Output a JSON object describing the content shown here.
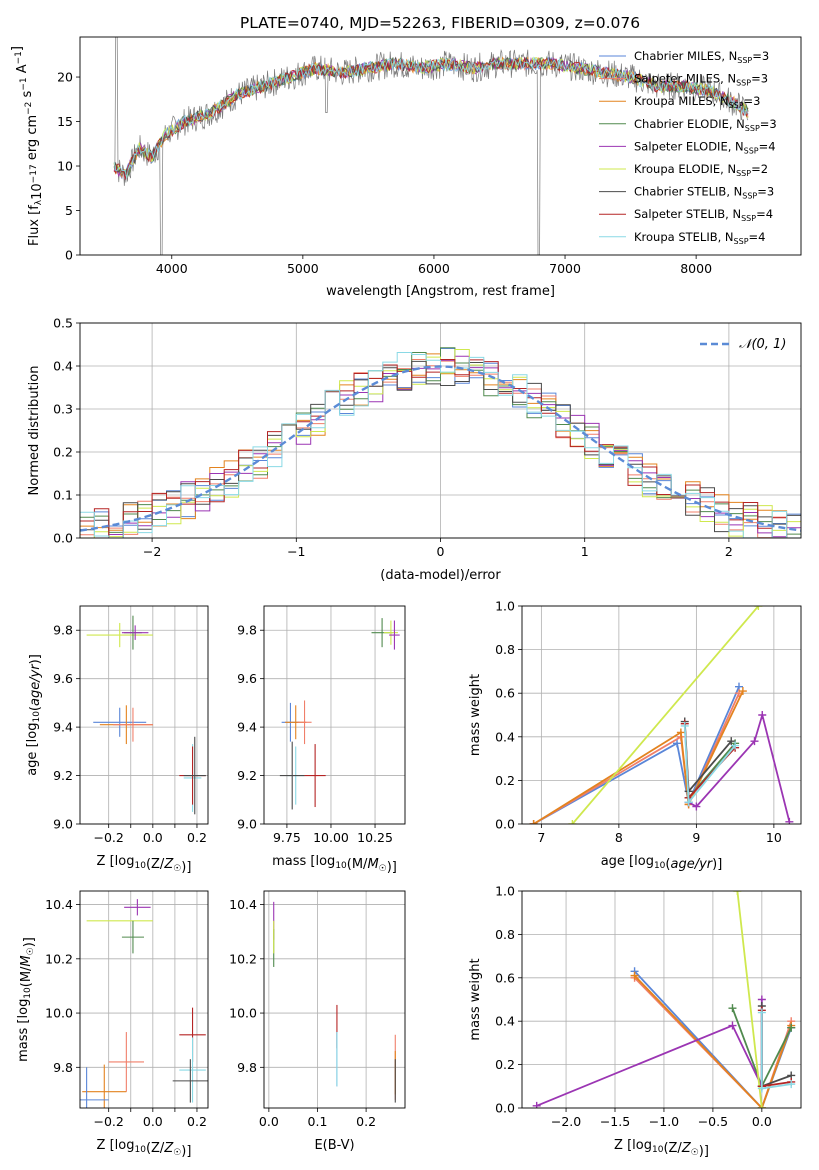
{
  "title": "PLATE=0740, MJD=52263, FIBERID=0309, z=0.076",
  "colors": {
    "Chabrier MILES": "#5a86d8",
    "Salpeter MILES": "#f07f6a",
    "Kroupa MILES": "#e3831f",
    "Chabrier ELODIE": "#508a4e",
    "Salpeter ELODIE": "#9b35b3",
    "Kroupa ELODIE": "#cfe84e",
    "Chabrier STELIB": "#4b4b4b",
    "Salpeter STELIB": "#b52525",
    "Kroupa STELIB": "#8ad9e5",
    "gauss": "#5b8bd6"
  },
  "chart_data": [
    {
      "id": "spectrum",
      "type": "line",
      "xlabel": "wavelength [Angstrom, rest frame]",
      "ylabel": "Flux [f_λ10^-17 erg cm^-2 s^-1 A^-1]",
      "xlim": [
        3300,
        8800
      ],
      "ylim": [
        0,
        24.5
      ],
      "xticks": [
        4000,
        5000,
        6000,
        7000,
        8000
      ],
      "yticks": [
        0,
        5,
        10,
        15,
        20
      ],
      "grid": false,
      "legend_position": "right",
      "legend": [
        {
          "model": "Chabrier MILES",
          "nssp": "3"
        },
        {
          "model": "Salpeter MILES",
          "nssp": "3"
        },
        {
          "model": "Kroupa MILES",
          "nssp": "3"
        },
        {
          "model": "Chabrier ELODIE",
          "nssp": "3"
        },
        {
          "model": "Salpeter ELODIE",
          "nssp": "4"
        },
        {
          "model": "Kroupa ELODIE",
          "nssp": "2"
        },
        {
          "model": "Chabrier STELIB",
          "nssp": "3"
        },
        {
          "model": "Salpeter STELIB",
          "nssp": "4"
        },
        {
          "model": "Kroupa STELIB",
          "nssp": "4"
        }
      ],
      "anchor_points": [
        [
          3550,
          10
        ],
        [
          3650,
          9
        ],
        [
          3750,
          12
        ],
        [
          3850,
          11
        ],
        [
          3950,
          13.5
        ],
        [
          4100,
          15
        ],
        [
          4300,
          16
        ],
        [
          4500,
          18
        ],
        [
          4700,
          19
        ],
        [
          4900,
          20
        ],
        [
          5100,
          21
        ],
        [
          5300,
          20.5
        ],
        [
          5500,
          21
        ],
        [
          5700,
          21.5
        ],
        [
          5900,
          21
        ],
        [
          6100,
          21.5
        ],
        [
          6300,
          21
        ],
        [
          6500,
          21.5
        ],
        [
          6700,
          21.5
        ],
        [
          6900,
          21.5
        ],
        [
          7100,
          21
        ],
        [
          7300,
          20.5
        ],
        [
          7500,
          20
        ],
        [
          7700,
          19
        ],
        [
          7900,
          19
        ],
        [
          8100,
          18.5
        ],
        [
          8300,
          17
        ],
        [
          8400,
          16
        ]
      ]
    },
    {
      "id": "residuals",
      "type": "line",
      "xlabel": "(data-model)/error",
      "ylabel": "Normed distribution",
      "xlim": [
        -2.5,
        2.5
      ],
      "ylim": [
        0,
        0.5
      ],
      "xticks": [
        -2,
        -1,
        0,
        1,
        2
      ],
      "yticks": [
        0.0,
        0.1,
        0.2,
        0.3,
        0.4,
        0.5
      ],
      "grid": true,
      "legend_position": "top-right",
      "gauss_label": "𝒩(0, 1)",
      "bin_width": 0.1
    },
    {
      "id": "age-vs-Z",
      "type": "scatter",
      "xlabel": "Z [log10(Z/Z☉)]",
      "ylabel": "age [log10(age/yr)]",
      "xlim": [
        -0.33,
        0.25
      ],
      "ylim": [
        9.0,
        9.9
      ],
      "xticks": [
        -0.2,
        -0.1,
        0.0,
        0.1,
        0.2
      ],
      "xticklabels": [
        "−0.2",
        "",
        "0.0",
        "",
        "0.2"
      ],
      "yticks": [
        9.0,
        9.2,
        9.4,
        9.6,
        9.8
      ],
      "grid": true,
      "points": [
        {
          "model": "Kroupa ELODIE",
          "x": -0.15,
          "y": 9.78,
          "xerr": 0.15,
          "yerr": 0.05
        },
        {
          "model": "Chabrier ELODIE",
          "x": -0.09,
          "y": 9.79,
          "xerr": 0.04,
          "yerr": 0.07
        },
        {
          "model": "Salpeter ELODIE",
          "x": -0.08,
          "y": 9.79,
          "xerr": 0.06,
          "yerr": 0.03
        },
        {
          "model": "Chabrier MILES",
          "x": -0.15,
          "y": 9.42,
          "xerr": 0.12,
          "yerr": 0.06
        },
        {
          "model": "Kroupa MILES",
          "x": -0.12,
          "y": 9.41,
          "xerr": 0.12,
          "yerr": 0.08
        },
        {
          "model": "Salpeter MILES",
          "x": -0.09,
          "y": 9.41,
          "xerr": 0.09,
          "yerr": 0.07
        },
        {
          "model": "Kroupa STELIB",
          "x": 0.18,
          "y": 9.19,
          "xerr": 0.04,
          "yerr": 0.14
        },
        {
          "model": "Salpeter STELIB",
          "x": 0.18,
          "y": 9.2,
          "xerr": 0.06,
          "yerr": 0.12
        },
        {
          "model": "Chabrier STELIB",
          "x": 0.19,
          "y": 9.2,
          "xerr": 0.05,
          "yerr": 0.16
        }
      ]
    },
    {
      "id": "age-vs-mass",
      "type": "scatter",
      "xlabel": "mass [log10(M/M☉)]",
      "ylabel": "",
      "xlim": [
        9.62,
        10.42
      ],
      "ylim": [
        9.0,
        9.9
      ],
      "xticks": [
        9.75,
        10.0,
        10.25
      ],
      "xticklabels": [
        "9.75",
        "10.00",
        "10.25"
      ],
      "yticks": [
        9.0,
        9.2,
        9.4,
        9.6,
        9.8
      ],
      "grid": true,
      "points": [
        {
          "model": "Chabrier MILES",
          "x": 9.77,
          "y": 9.42,
          "xerr": 0.05,
          "yerr": 0.08
        },
        {
          "model": "Kroupa MILES",
          "x": 9.8,
          "y": 9.42,
          "xerr": 0.06,
          "yerr": 0.07
        },
        {
          "model": "Salpeter MILES",
          "x": 9.85,
          "y": 9.42,
          "xerr": 0.04,
          "yerr": 0.09
        },
        {
          "model": "Kroupa STELIB",
          "x": 9.8,
          "y": 9.2,
          "xerr": 0.05,
          "yerr": 0.12
        },
        {
          "model": "Chabrier STELIB",
          "x": 9.78,
          "y": 9.2,
          "xerr": 0.07,
          "yerr": 0.14
        },
        {
          "model": "Salpeter STELIB",
          "x": 9.91,
          "y": 9.2,
          "xerr": 0.06,
          "yerr": 0.13
        },
        {
          "model": "Chabrier ELODIE",
          "x": 10.29,
          "y": 9.79,
          "xerr": 0.06,
          "yerr": 0.06
        },
        {
          "model": "Kroupa ELODIE",
          "x": 10.34,
          "y": 9.79,
          "xerr": 0.04,
          "yerr": 0.05
        },
        {
          "model": "Salpeter ELODIE",
          "x": 10.36,
          "y": 9.78,
          "xerr": 0.03,
          "yerr": 0.06
        }
      ]
    },
    {
      "id": "massweight-vs-age",
      "type": "line",
      "xlabel": "age [log10(age/yr)]",
      "ylabel": "mass weight",
      "xlim": [
        6.75,
        10.35
      ],
      "ylim": [
        0.0,
        1.0
      ],
      "xticks": [
        7,
        8,
        9,
        10
      ],
      "yticks": [
        0.0,
        0.2,
        0.4,
        0.6,
        0.8,
        1.0
      ],
      "grid": true,
      "series": [
        {
          "model": "Chabrier MILES",
          "x": [
            6.9,
            8.75,
            8.9,
            9.55
          ],
          "y": [
            0.0,
            0.37,
            0.1,
            0.63
          ]
        },
        {
          "model": "Salpeter MILES",
          "x": [
            6.9,
            8.8,
            8.9,
            9.55
          ],
          "y": [
            0.0,
            0.4,
            0.09,
            0.6
          ]
        },
        {
          "model": "Kroupa MILES",
          "x": [
            6.9,
            8.8,
            8.9,
            9.6
          ],
          "y": [
            0.0,
            0.42,
            0.09,
            0.61
          ]
        },
        {
          "model": "Chabrier ELODIE",
          "x": [
            8.9,
            9.5
          ],
          "y": [
            0.12,
            0.37
          ]
        },
        {
          "model": "Salpeter ELODIE",
          "x": [
            8.9,
            9.0,
            9.75,
            9.85,
            10.2
          ],
          "y": [
            0.1,
            0.08,
            0.38,
            0.5,
            0.01
          ]
        },
        {
          "model": "Kroupa ELODIE",
          "x": [
            7.4,
            9.8
          ],
          "y": [
            0.0,
            1.0
          ]
        },
        {
          "model": "Chabrier STELIB",
          "x": [
            8.85,
            8.9,
            9.45
          ],
          "y": [
            0.47,
            0.15,
            0.38
          ]
        },
        {
          "model": "Salpeter STELIB",
          "x": [
            8.85,
            8.9,
            9.5
          ],
          "y": [
            0.46,
            0.12,
            0.35
          ]
        },
        {
          "model": "Kroupa STELIB",
          "x": [
            8.85,
            8.9,
            9.5
          ],
          "y": [
            0.45,
            0.1,
            0.36
          ]
        }
      ]
    },
    {
      "id": "mass-vs-Z",
      "type": "scatter",
      "xlabel": "Z [log10(Z/Z☉)]",
      "ylabel": "mass [log10(M/M☉)]",
      "xlim": [
        -0.33,
        0.25
      ],
      "ylim": [
        9.65,
        10.45
      ],
      "xticks": [
        -0.2,
        -0.1,
        0.0,
        0.1,
        0.2
      ],
      "xticklabels": [
        "−0.2",
        "",
        "0.0",
        "",
        "0.2"
      ],
      "yticks": [
        9.8,
        10.0,
        10.2,
        10.4
      ],
      "grid": true,
      "points": [
        {
          "model": "Kroupa ELODIE",
          "x": -0.15,
          "y": 10.34,
          "xerr": 0.15,
          "yerr": 0.0
        },
        {
          "model": "Salpeter ELODIE",
          "x": -0.07,
          "y": 10.39,
          "xerr": 0.06,
          "yerr": 0.03
        },
        {
          "model": "Chabrier ELODIE",
          "x": -0.09,
          "y": 10.28,
          "xerr": 0.05,
          "yerr": 0.06
        },
        {
          "model": "Salpeter STELIB",
          "x": 0.18,
          "y": 9.92,
          "xerr": 0.06,
          "yerr": 0.1
        },
        {
          "model": "Salpeter MILES",
          "x": -0.12,
          "y": 9.82,
          "xerr": 0.08,
          "yerr": 0.11
        },
        {
          "model": "Kroupa STELIB",
          "x": 0.18,
          "y": 9.79,
          "xerr": 0.06,
          "yerr": 0.12
        },
        {
          "model": "Chabrier STELIB",
          "x": 0.17,
          "y": 9.75,
          "xerr": 0.08,
          "yerr": 0.08
        },
        {
          "model": "Kroupa MILES",
          "x": -0.22,
          "y": 9.71,
          "xerr": 0.1,
          "yerr": 0.1
        },
        {
          "model": "Chabrier MILES",
          "x": -0.3,
          "y": 9.68,
          "xerr": 0.1,
          "yerr": 0.12
        }
      ]
    },
    {
      "id": "mass-vs-EBV",
      "type": "scatter",
      "xlabel": "E(B-V)",
      "ylabel": "",
      "xlim": [
        -0.01,
        0.28
      ],
      "ylim": [
        9.65,
        10.45
      ],
      "xticks": [
        0.0,
        0.1,
        0.2
      ],
      "xticklabels": [
        "0.0",
        "0.1",
        "0.2"
      ],
      "yticks": [
        9.8,
        10.0,
        10.2,
        10.4
      ],
      "grid": true,
      "points": [
        {
          "model": "Salpeter ELODIE",
          "x": 0.01,
          "y": 10.34,
          "xerr": 0,
          "yerr": 0.07
        },
        {
          "model": "Chabrier ELODIE",
          "x": 0.01,
          "y": 10.24,
          "xerr": 0,
          "yerr": 0.07
        },
        {
          "model": "Kroupa ELODIE",
          "x": 0.01,
          "y": 10.28,
          "xerr": 0,
          "yerr": 0.06
        },
        {
          "model": "Salpeter STELIB",
          "x": 0.14,
          "y": 9.95,
          "xerr": 0,
          "yerr": 0.08
        },
        {
          "model": "Chabrier MILES",
          "x": 0.14,
          "y": 9.83,
          "xerr": 0,
          "yerr": 0.1
        },
        {
          "model": "Kroupa STELIB",
          "x": 0.14,
          "y": 9.83,
          "xerr": 0,
          "yerr": 0.1
        },
        {
          "model": "Salpeter MILES",
          "x": 0.26,
          "y": 9.8,
          "xerr": 0,
          "yerr": 0.12
        },
        {
          "model": "Kroupa MILES",
          "x": 0.26,
          "y": 9.78,
          "xerr": 0,
          "yerr": 0.08
        },
        {
          "model": "Chabrier STELIB",
          "x": 0.26,
          "y": 9.75,
          "xerr": 0,
          "yerr": 0.08
        }
      ]
    },
    {
      "id": "massweight-vs-Z",
      "type": "line",
      "xlabel": "Z [log10(Z/Z☉)]",
      "ylabel": "mass weight",
      "xlim": [
        -2.45,
        0.4
      ],
      "ylim": [
        0.0,
        1.0
      ],
      "xticks": [
        -2.0,
        -1.5,
        -1.0,
        -0.5,
        0.0
      ],
      "xticklabels": [
        "−2.0",
        "−1.5",
        "−1.0",
        "−0.5",
        "0.0"
      ],
      "yticks": [
        0.0,
        0.2,
        0.4,
        0.6,
        0.8,
        1.0
      ],
      "grid": true,
      "series": [
        {
          "model": "Chabrier MILES",
          "x": [
            -1.3,
            0.0,
            0.3
          ],
          "y": [
            0.63,
            0.0,
            0.37
          ]
        },
        {
          "model": "Salpeter MILES",
          "x": [
            -1.3,
            0.0,
            0.3
          ],
          "y": [
            0.6,
            0.0,
            0.4
          ]
        },
        {
          "model": "Kroupa MILES",
          "x": [
            -1.3,
            0.0,
            0.3
          ],
          "y": [
            0.61,
            0.0,
            0.38
          ]
        },
        {
          "model": "Chabrier ELODIE",
          "x": [
            -0.3,
            0.0,
            0.3
          ],
          "y": [
            0.46,
            0.1,
            0.37
          ]
        },
        {
          "model": "Salpeter ELODIE",
          "x": [
            -2.3,
            -0.3,
            0.0,
            0.0
          ],
          "y": [
            0.01,
            0.38,
            0.1,
            0.5
          ]
        },
        {
          "model": "Kroupa ELODIE",
          "x": [
            -0.25,
            0.0
          ],
          "y": [
            1.0,
            0.0
          ]
        },
        {
          "model": "Chabrier STELIB",
          "x": [
            0.0,
            0.0,
            0.3
          ],
          "y": [
            0.47,
            0.1,
            0.15
          ]
        },
        {
          "model": "Salpeter STELIB",
          "x": [
            0.0,
            0.0,
            0.3
          ],
          "y": [
            0.45,
            0.1,
            0.12
          ]
        },
        {
          "model": "Kroupa STELIB",
          "x": [
            0.0,
            0.0,
            0.3
          ],
          "y": [
            0.44,
            0.09,
            0.11
          ]
        }
      ]
    }
  ]
}
